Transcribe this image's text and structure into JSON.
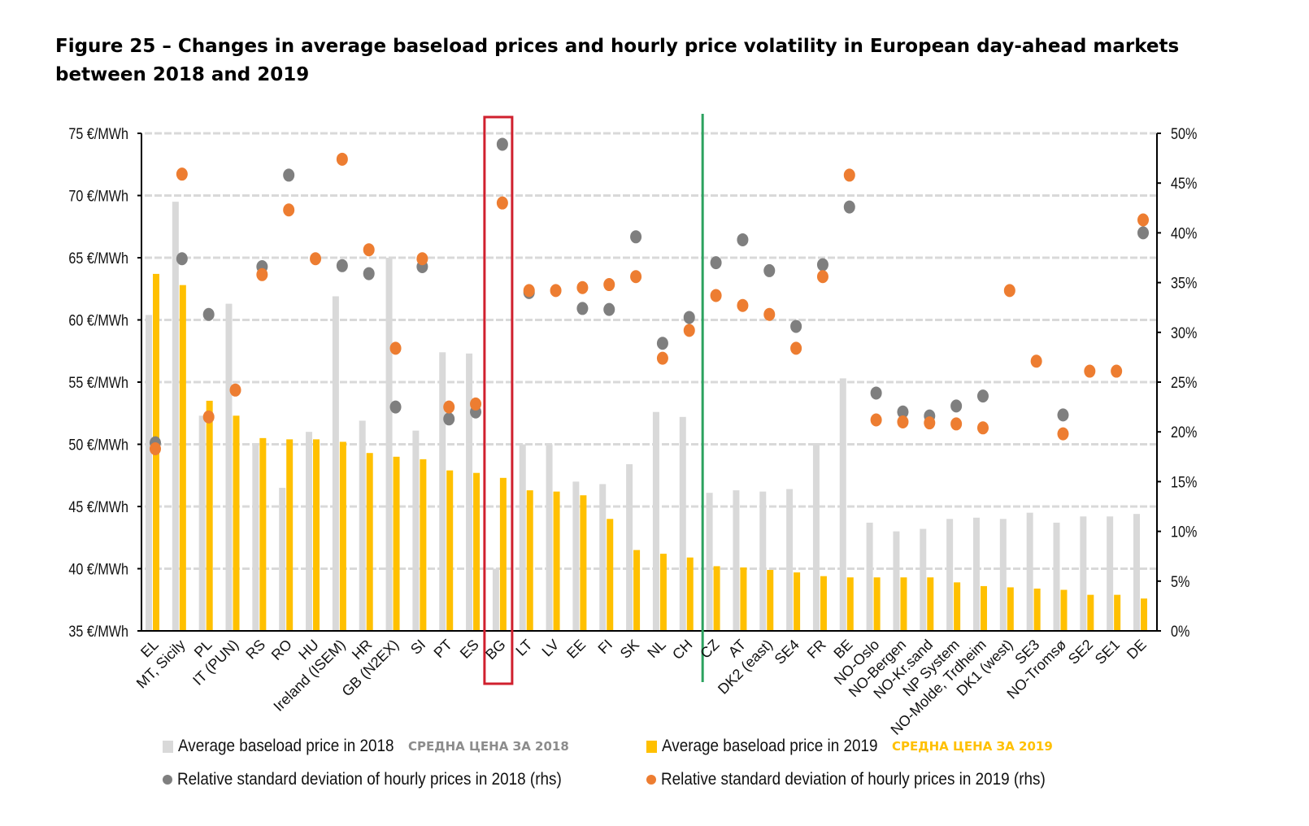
{
  "title": "Figure 25 – Changes in average baseload prices and hourly price volatility in European day-ahead markets between 2018 and 2019",
  "chart_data": {
    "type": "bar",
    "title": "Figure 25 – Changes in average baseload prices and hourly price volatility in European day-ahead markets between 2018 and 2019",
    "categories": [
      "EL",
      "MT, Sicily",
      "PL",
      "IT (PUN)",
      "RS",
      "RO",
      "HU",
      "Ireland (ISEM)",
      "HR",
      "GB (N2EX)",
      "SI",
      "PT",
      "ES",
      "BG",
      "LT",
      "LV",
      "EE",
      "FI",
      "SK",
      "NL",
      "CH",
      "CZ",
      "AT",
      "DK2 (east)",
      "SE4",
      "FR",
      "BE",
      "NO-Oslo",
      "NO-Bergen",
      "NO-Kr.sand",
      "NP System",
      "NO-Molde, Trdheim",
      "DK1 (west)",
      "SE3",
      "NO-Tromsø",
      "SE2",
      "SE1",
      "DE"
    ],
    "left_axis": {
      "ylim": [
        35,
        75
      ],
      "ticks": [
        "35 €/MWh",
        "40 €/MWh",
        "45 €/MWh",
        "50 €/MWh",
        "55 €/MWh",
        "60 €/MWh",
        "65 €/MWh",
        "70 €/MWh",
        "75 €/MWh"
      ],
      "tick_values": [
        35,
        40,
        45,
        50,
        55,
        60,
        65,
        70,
        75
      ]
    },
    "right_axis": {
      "ylim": [
        0,
        50
      ],
      "ticks": [
        "0%",
        "5%",
        "10%",
        "15%",
        "20%",
        "25%",
        "30%",
        "35%",
        "40%",
        "45%",
        "50%"
      ],
      "tick_values": [
        0,
        5,
        10,
        15,
        20,
        25,
        30,
        35,
        40,
        45,
        50
      ]
    },
    "grid": true,
    "series": [
      {
        "name": "Average baseload price in 2018",
        "kind": "bar",
        "axis": "left",
        "color": "#d9d9d9",
        "values": [
          60.4,
          69.5,
          52.3,
          61.3,
          50.0,
          46.5,
          51.0,
          61.9,
          51.9,
          65.0,
          51.1,
          57.4,
          57.3,
          40.0,
          50.0,
          50.0,
          47.0,
          46.8,
          48.4,
          52.6,
          52.2,
          46.1,
          46.3,
          46.2,
          46.4,
          50.1,
          55.3,
          43.7,
          43.0,
          43.2,
          44.0,
          44.1,
          44.0,
          44.5,
          43.7,
          44.2,
          44.2,
          44.4
        ]
      },
      {
        "name": "Average baseload price in 2019",
        "kind": "bar",
        "axis": "left",
        "color": "#ffc000",
        "values": [
          63.7,
          62.8,
          53.5,
          52.3,
          50.5,
          50.4,
          50.4,
          50.2,
          49.3,
          49.0,
          48.8,
          47.9,
          47.7,
          47.3,
          46.3,
          46.2,
          45.9,
          44.0,
          41.5,
          41.2,
          40.9,
          40.2,
          40.1,
          39.9,
          39.7,
          39.4,
          39.3,
          39.3,
          39.3,
          39.3,
          38.9,
          38.6,
          38.5,
          38.4,
          38.3,
          37.9,
          37.9,
          37.6
        ]
      },
      {
        "name": "Relative standard deviation of hourly prices in 2018 (rhs)",
        "kind": "scatter",
        "axis": "right",
        "color": "#7f7f7f",
        "values": [
          18.9,
          37.4,
          31.8,
          null,
          36.6,
          45.8,
          null,
          36.7,
          35.9,
          22.5,
          36.6,
          21.3,
          22.0,
          48.9,
          34.0,
          null,
          32.4,
          32.3,
          39.6,
          28.9,
          31.5,
          37.0,
          39.3,
          36.2,
          30.6,
          36.8,
          42.6,
          23.9,
          22.0,
          21.6,
          22.6,
          23.6,
          null,
          null,
          21.7,
          null,
          null,
          40.0
        ]
      },
      {
        "name": "Relative standard deviation of hourly prices in 2019 (rhs)",
        "kind": "scatter",
        "axis": "right",
        "color": "#ed7d31",
        "values": [
          18.3,
          45.9,
          21.5,
          24.2,
          35.8,
          42.3,
          37.4,
          47.4,
          38.3,
          28.4,
          37.4,
          22.5,
          22.8,
          43.0,
          34.2,
          34.2,
          34.5,
          34.8,
          35.6,
          27.4,
          30.2,
          33.7,
          32.7,
          31.8,
          28.4,
          35.6,
          45.8,
          21.2,
          21.0,
          20.9,
          20.8,
          20.4,
          34.2,
          27.1,
          19.8,
          26.1,
          26.1,
          41.3
        ]
      }
    ],
    "annotations": [
      {
        "type": "highlight-box",
        "target": "BG",
        "color": "#d0202e"
      },
      {
        "type": "vertical-line",
        "between": [
          "CH",
          "CZ"
        ],
        "color": "#2ca25f"
      }
    ],
    "legend": {
      "placement": "bottom",
      "items": [
        {
          "label": "Average baseload price in 2018",
          "note": "СРЕДНА ЦЕНА ЗА 2018",
          "note_color": "#8c8c8c",
          "swatch": "square",
          "color": "#d9d9d9"
        },
        {
          "label": "Average baseload price in 2019",
          "note": "СРЕДНА ЦЕНА ЗА 2019",
          "note_color": "#ffc000",
          "swatch": "square",
          "color": "#ffc000"
        },
        {
          "label": "Relative standard deviation of hourly prices in 2018 (rhs)",
          "note": "",
          "swatch": "dot",
          "color": "#7f7f7f"
        },
        {
          "label": "Relative standard deviation of hourly prices in 2019 (rhs)",
          "note": "",
          "swatch": "dot",
          "color": "#ed7d31"
        }
      ]
    }
  }
}
